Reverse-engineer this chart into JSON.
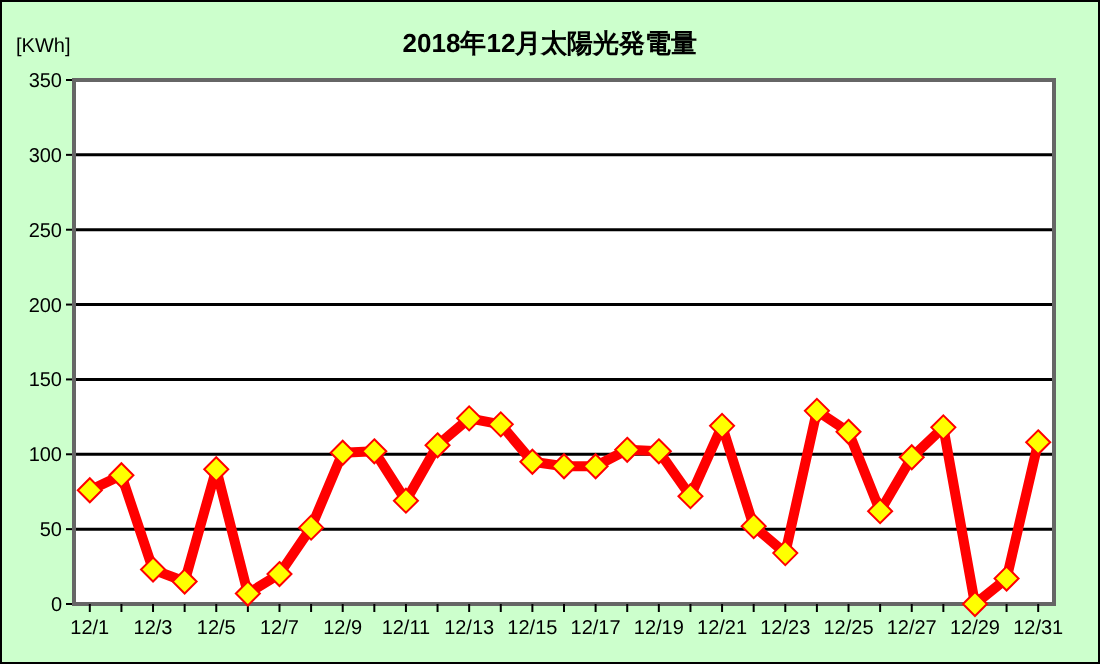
{
  "chart_data": {
    "type": "line",
    "title": "2018年12月太陽光発電量",
    "ylabel": "[KWh]",
    "categories": [
      "12/1",
      null,
      "12/3",
      null,
      "12/5",
      null,
      "12/7",
      null,
      "12/9",
      null,
      "12/11",
      null,
      "12/13",
      null,
      "12/15",
      null,
      "12/17",
      null,
      "12/19",
      null,
      "12/21",
      null,
      "12/23",
      null,
      "12/25",
      null,
      "12/27",
      null,
      "12/29",
      null,
      "12/31"
    ],
    "series": [
      {
        "color": "#ff0000",
        "values": [
          76,
          86,
          23,
          15,
          90,
          7,
          20,
          51,
          101,
          102,
          69,
          106,
          124,
          120,
          95,
          92,
          92,
          103,
          102,
          72,
          119,
          52,
          34,
          129,
          115,
          62,
          98,
          118,
          0,
          17,
          108
        ]
      }
    ],
    "ylim": [
      0,
      350
    ],
    "yticks": [
      0,
      50,
      100,
      150,
      200,
      250,
      300,
      350
    ],
    "grid": "y",
    "marker": "diamond"
  }
}
